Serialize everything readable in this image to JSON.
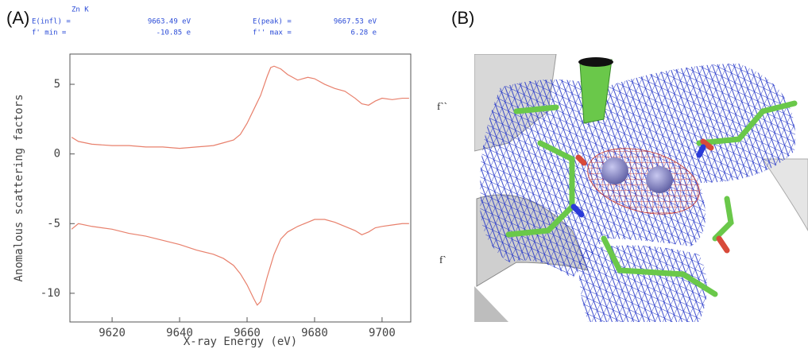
{
  "chart_data": {
    "type": "line",
    "panel_label": "(A)",
    "annotations": [
      "Zn K",
      "E(infl) =",
      "9663.49 eV",
      "f' min =",
      "-10.85 e",
      "E(peak) =",
      "9667.53 eV",
      "f'' max =",
      "6.28 e"
    ],
    "x_label": "X-ray Energy (eV)",
    "y_label": "Anomalous scattering factors",
    "x": [
      9608,
      9610,
      9614,
      9620,
      9625,
      9630,
      9635,
      9640,
      9645,
      9650,
      9653,
      9656,
      9658,
      9660,
      9662,
      9663,
      9664,
      9666,
      9667,
      9668,
      9670,
      9672,
      9675,
      9678,
      9680,
      9683,
      9686,
      9689,
      9692,
      9694,
      9696,
      9698,
      9700,
      9703,
      9706,
      9708
    ],
    "series": [
      {
        "color": "#e8806c",
        "values": [
          1.2,
          0.9,
          0.7,
          0.6,
          0.6,
          0.5,
          0.5,
          0.4,
          0.5,
          0.6,
          0.8,
          1.0,
          1.4,
          2.2,
          3.2,
          3.7,
          4.2,
          5.6,
          6.2,
          6.3,
          6.1,
          5.7,
          5.3,
          5.5,
          5.4,
          5.0,
          4.7,
          4.5,
          4.0,
          3.6,
          3.5,
          3.8,
          4.0,
          3.9,
          4.0,
          4.0
        ]
      },
      {
        "color": "#e8806c",
        "values": [
          -5.4,
          -5.0,
          -5.2,
          -5.4,
          -5.7,
          -5.9,
          -6.2,
          -6.5,
          -6.9,
          -7.2,
          -7.5,
          -8.0,
          -8.6,
          -9.4,
          -10.4,
          -10.85,
          -10.6,
          -8.8,
          -8.0,
          -7.2,
          -6.1,
          -5.6,
          -5.2,
          -4.9,
          -4.7,
          -4.7,
          -4.9,
          -5.2,
          -5.5,
          -5.8,
          -5.6,
          -5.3,
          -5.2,
          -5.1,
          -5.0,
          -5.0
        ]
      }
    ],
    "xlim": [
      9607.5,
      9708.5
    ],
    "ylim": [
      -12.06,
      7.17
    ],
    "xticks": [
      9620,
      9640,
      9660,
      9680,
      9700
    ],
    "yticks": [
      -10,
      -5,
      0,
      5
    ]
  },
  "panel_b": {
    "label": "(B)",
    "labels": [
      "f``",
      "f`"
    ]
  }
}
